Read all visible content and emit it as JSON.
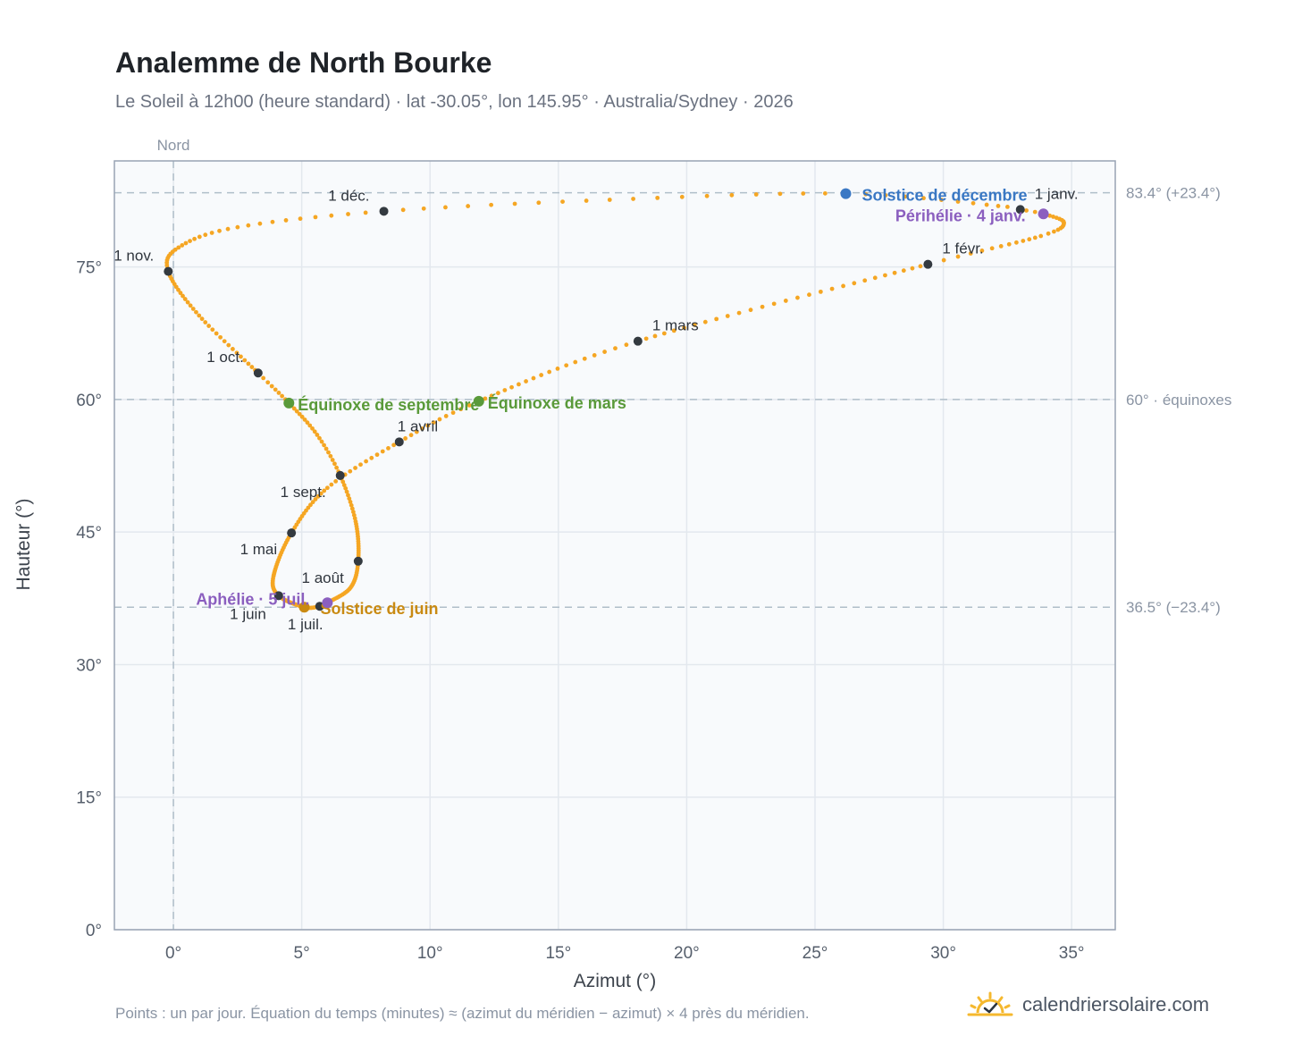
{
  "header": {
    "title": "Analemme de North Bourke",
    "subtitle": "Le Soleil à 12h00 (heure standard) · lat -30.05°, lon 145.95° · Australia/Sydney · 2026"
  },
  "footer": {
    "note": "Points : un par jour. Équation du temps (minutes) ≈ (azimut du méridien − azimut) × 4 près du méridien.",
    "brand": "calendriersolaire.com",
    "brand_icon": "sun-check-icon"
  },
  "colors": {
    "curve": "#f5a623",
    "month_marker": "#343a40",
    "solstice_december": "#3a78c4",
    "solstice_june": "#c98a12",
    "equinox": "#5a9a3a",
    "perihelion_aphelion": "#8b5fbf",
    "plot_background": "#f8fafc",
    "reference_line": "#b0bec9"
  },
  "chart_data": {
    "type": "scatter",
    "xlabel": "Azimut (°)",
    "ylabel": "Hauteur (°)",
    "xlim": [
      -2.3,
      36.7
    ],
    "ylim": [
      0,
      87
    ],
    "x_ticks": [
      0,
      5,
      10,
      15,
      20,
      25,
      30,
      35
    ],
    "y_ticks": [
      0,
      15,
      30,
      45,
      60,
      75
    ],
    "x_tick_labels": [
      "0°",
      "5°",
      "10°",
      "15°",
      "20°",
      "25°",
      "30°",
      "35°"
    ],
    "y_tick_labels": [
      "0°",
      "15°",
      "30°",
      "45°",
      "60°",
      "75°"
    ],
    "grid": true,
    "vertical_reference": {
      "x": 0,
      "label": "Nord"
    },
    "horizontal_references": [
      {
        "y": 83.4,
        "label": "83.4° (+23.4°)"
      },
      {
        "y": 60,
        "label": "60° · équinoxes"
      },
      {
        "y": 36.5,
        "label": "36.5° (−23.4°)"
      }
    ],
    "curve_keypoints": [
      {
        "day": 1,
        "x": 33.0,
        "y": 81.5
      },
      {
        "day": 4,
        "x": 33.9,
        "y": 81.0
      },
      {
        "day": 12,
        "x": 34.7,
        "y": 80.0
      },
      {
        "day": 20,
        "x": 33.8,
        "y": 78.5
      },
      {
        "day": 32,
        "x": 29.4,
        "y": 75.3
      },
      {
        "day": 60,
        "x": 18.1,
        "y": 66.6
      },
      {
        "day": 79,
        "x": 11.9,
        "y": 59.8
      },
      {
        "day": 91,
        "x": 8.8,
        "y": 55.2
      },
      {
        "day": 105,
        "x": 6.0,
        "y": 50.0
      },
      {
        "day": 121,
        "x": 4.6,
        "y": 44.9
      },
      {
        "day": 140,
        "x": 3.9,
        "y": 40.0
      },
      {
        "day": 152,
        "x": 4.1,
        "y": 37.8
      },
      {
        "day": 172,
        "x": 5.1,
        "y": 36.5
      },
      {
        "day": 182,
        "x": 5.7,
        "y": 36.6
      },
      {
        "day": 186,
        "x": 6.0,
        "y": 37.0
      },
      {
        "day": 200,
        "x": 6.9,
        "y": 38.7
      },
      {
        "day": 213,
        "x": 7.2,
        "y": 41.7
      },
      {
        "day": 230,
        "x": 7.1,
        "y": 46.2
      },
      {
        "day": 244,
        "x": 6.5,
        "y": 51.4
      },
      {
        "day": 255,
        "x": 5.6,
        "y": 56.0
      },
      {
        "day": 266,
        "x": 4.5,
        "y": 59.6
      },
      {
        "day": 274,
        "x": 3.3,
        "y": 63.0
      },
      {
        "day": 290,
        "x": 1.0,
        "y": 69.5
      },
      {
        "day": 305,
        "x": -0.2,
        "y": 74.5
      },
      {
        "day": 315,
        "x": 0.2,
        "y": 77.2
      },
      {
        "day": 325,
        "x": 2.5,
        "y": 79.5
      },
      {
        "day": 335,
        "x": 8.2,
        "y": 81.3
      },
      {
        "day": 345,
        "x": 17.0,
        "y": 82.6
      },
      {
        "day": 355,
        "x": 26.2,
        "y": 83.3
      },
      {
        "day": 365,
        "x": 32.5,
        "y": 81.8
      }
    ],
    "month_markers": [
      {
        "label": "1 janv.",
        "x": 33.0,
        "y": 81.5
      },
      {
        "label": "1 févr.",
        "x": 29.4,
        "y": 75.3
      },
      {
        "label": "1 mars",
        "x": 18.1,
        "y": 66.6
      },
      {
        "label": "1 avril",
        "x": 8.8,
        "y": 55.2
      },
      {
        "label": "1 mai",
        "x": 4.6,
        "y": 44.9
      },
      {
        "label": "1 juin",
        "x": 4.1,
        "y": 37.8
      },
      {
        "label": "1 juil.",
        "x": 5.7,
        "y": 36.6
      },
      {
        "label": "1 août",
        "x": 7.2,
        "y": 41.7
      },
      {
        "label": "1 sept.",
        "x": 6.5,
        "y": 51.4
      },
      {
        "label": "1 oct.",
        "x": 3.3,
        "y": 63.0
      },
      {
        "label": "1 nov.",
        "x": -0.2,
        "y": 74.5
      },
      {
        "label": "1 déc.",
        "x": 8.2,
        "y": 81.3
      }
    ],
    "events": [
      {
        "label": "Solstice de décembre",
        "x": 26.2,
        "y": 83.3,
        "kind": "solstice_december"
      },
      {
        "label": "Périhélie · 4 janv.",
        "x": 33.9,
        "y": 81.0,
        "kind": "perihelion_aphelion"
      },
      {
        "label": "Équinoxe de mars",
        "x": 11.9,
        "y": 59.8,
        "kind": "equinox"
      },
      {
        "label": "Équinoxe de septembre",
        "x": 4.5,
        "y": 59.6,
        "kind": "equinox"
      },
      {
        "label": "Solstice de juin",
        "x": 5.1,
        "y": 36.5,
        "kind": "solstice_june"
      },
      {
        "label": "Aphélie · 5 juil.",
        "x": 6.0,
        "y": 37.0,
        "kind": "perihelion_aphelion"
      }
    ]
  }
}
